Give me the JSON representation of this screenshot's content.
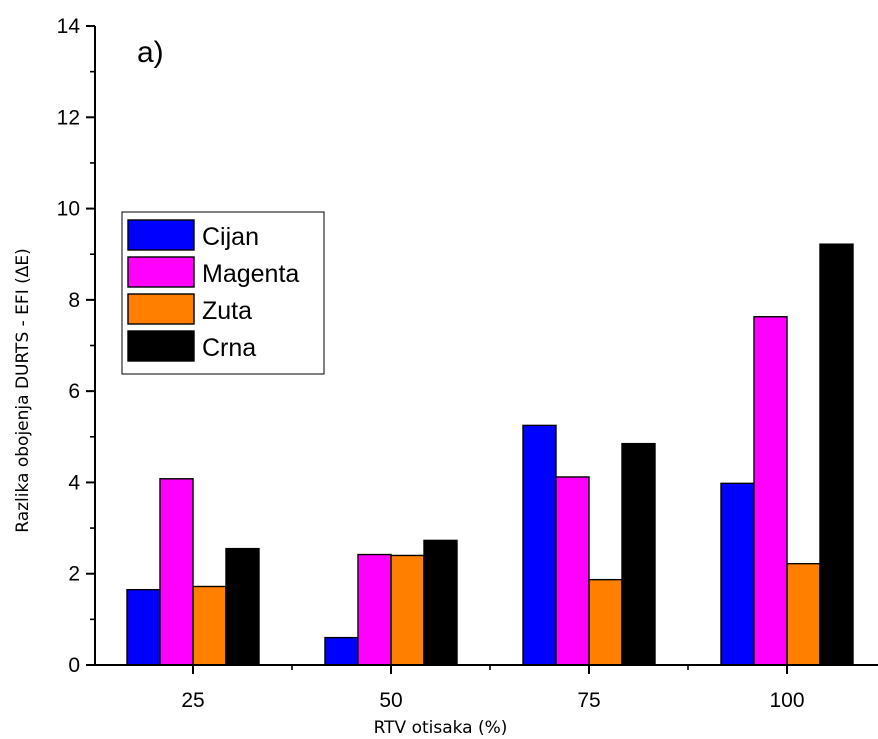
{
  "chart_data": {
    "type": "bar",
    "panel_label": "a)",
    "xlabel": "RTV otisaka (%)",
    "ylabel": "Razlika obojenja DURTS - EFI (ΔE)",
    "categories": [
      "25",
      "50",
      "75",
      "100"
    ],
    "ylim": [
      0,
      14
    ],
    "yticks": [
      0,
      2,
      4,
      6,
      8,
      10,
      12,
      14
    ],
    "grid": false,
    "legend_position": "left",
    "series": [
      {
        "name": "Cijan",
        "color": "#0000ff",
        "values": [
          1.65,
          0.6,
          5.25,
          3.98
        ]
      },
      {
        "name": "Magenta",
        "color": "#ff00ff",
        "values": [
          4.08,
          2.42,
          4.12,
          7.63
        ]
      },
      {
        "name": "Zuta",
        "color": "#ff8000",
        "values": [
          1.72,
          2.4,
          1.87,
          2.22
        ]
      },
      {
        "name": "Crna",
        "color": "#000000",
        "values": [
          2.55,
          2.73,
          4.85,
          9.22
        ]
      }
    ]
  }
}
